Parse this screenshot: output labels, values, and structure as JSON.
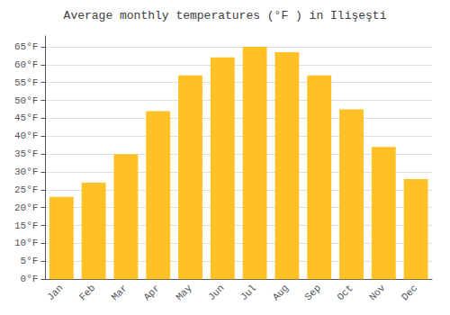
{
  "chart_data": {
    "type": "bar",
    "title": "Average monthly temperatures (°F ) in Ilişeşti",
    "categories": [
      "Jan",
      "Feb",
      "Mar",
      "Apr",
      "May",
      "Jun",
      "Jul",
      "Aug",
      "Sep",
      "Oct",
      "Nov",
      "Dec"
    ],
    "values": [
      23,
      27,
      35,
      47,
      57,
      62,
      65,
      63.5,
      57,
      47.5,
      37,
      28
    ],
    "color": "#FFC125",
    "ylim": [
      0,
      68
    ],
    "yticks": [
      {
        "value": 0,
        "label": "0°F"
      },
      {
        "value": 5,
        "label": "5°F"
      },
      {
        "value": 10,
        "label": "10°F"
      },
      {
        "value": 15,
        "label": "15°F"
      },
      {
        "value": 20,
        "label": "20°F"
      },
      {
        "value": 25,
        "label": "25°F"
      },
      {
        "value": 30,
        "label": "30°F"
      },
      {
        "value": 35,
        "label": "35°F"
      },
      {
        "value": 40,
        "label": "40°F"
      },
      {
        "value": 45,
        "label": "45°F"
      },
      {
        "value": 50,
        "label": "50°F"
      },
      {
        "value": 55,
        "label": "55°F"
      },
      {
        "value": 60,
        "label": "60°F"
      },
      {
        "value": 65,
        "label": "65°F"
      }
    ],
    "grid": true
  }
}
